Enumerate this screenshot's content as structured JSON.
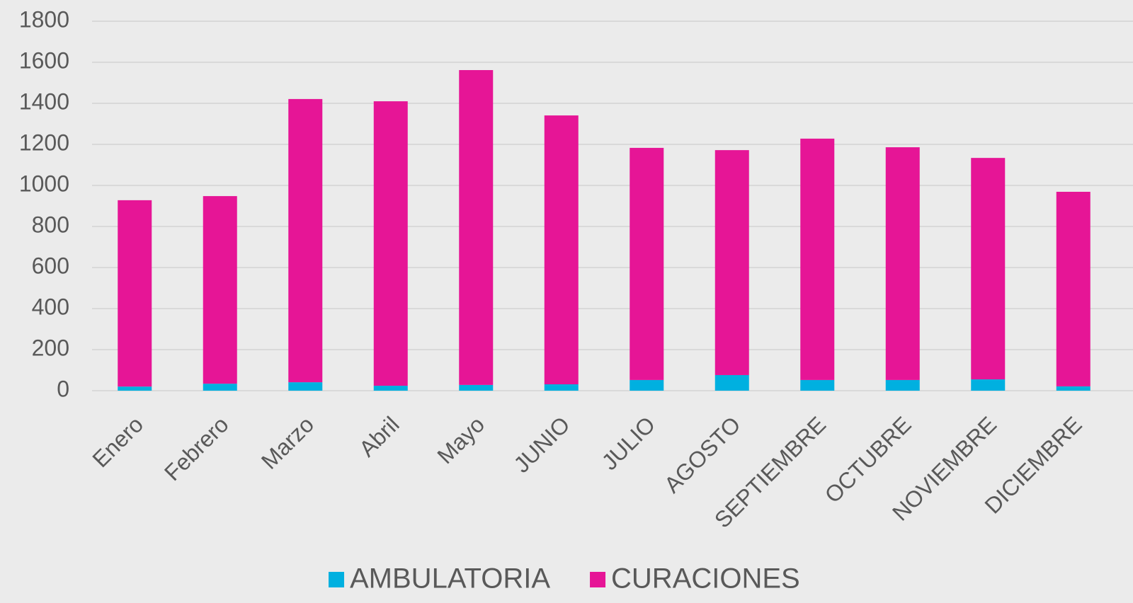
{
  "chart_data": {
    "type": "stacked_bar",
    "categories": [
      "Enero",
      "Febrero",
      "Marzo",
      "Abril",
      "Mayo",
      "JUNIO",
      "JULIO",
      "AGOSTO",
      "SEPTIEMBRE",
      "OCTUBRE",
      "NOVIEMBRE",
      "DICIEMBRE"
    ],
    "series": [
      {
        "name": "AMBULATORIA",
        "color": "#00b0e0",
        "values": [
          20,
          34,
          41,
          24,
          28,
          31,
          52,
          76,
          52,
          52,
          55,
          21
        ]
      },
      {
        "name": "CURACIONES",
        "color": "#e61596",
        "values": [
          908,
          914,
          1380,
          1386,
          1534,
          1310,
          1131,
          1096,
          1176,
          1134,
          1079,
          948
        ]
      }
    ],
    "ylim": [
      0,
      1800
    ],
    "yticks": [
      0,
      200,
      400,
      600,
      800,
      1000,
      1200,
      1400,
      1600,
      1800
    ],
    "grid": true,
    "legend": "bottom"
  }
}
